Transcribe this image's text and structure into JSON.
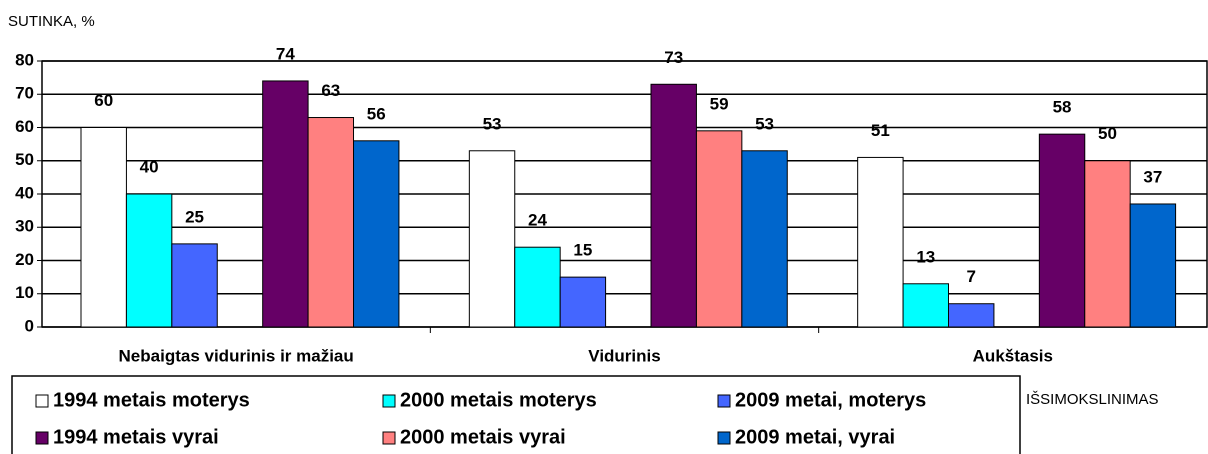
{
  "chart_data": {
    "type": "bar",
    "y_label": "SUTINKA, %",
    "x_label": "IŠSIMOKSLINIMAS",
    "categories": [
      "Nebaigtas vidurinis ir mažiau",
      "Vidurinis",
      "Aukštasis"
    ],
    "series": [
      {
        "name": "1994 metais moterys",
        "color": "#ffffff",
        "values": [
          60,
          53,
          51
        ]
      },
      {
        "name": "2000 metais moterys",
        "color": "#00ffff",
        "values": [
          40,
          24,
          13
        ]
      },
      {
        "name": "2009 metai, moterys",
        "color": "#4466ff",
        "values": [
          25,
          15,
          7
        ]
      },
      {
        "name": "1994 metais vyrai",
        "color": "#660066",
        "values": [
          74,
          73,
          58
        ]
      },
      {
        "name": "2000 metais vyrai",
        "color": "#ff8080",
        "values": [
          63,
          59,
          50
        ]
      },
      {
        "name": "2009 metai, vyrai",
        "color": "#0066cc",
        "values": [
          56,
          53,
          37
        ]
      }
    ],
    "ylim": [
      0,
      80
    ],
    "yticks": [
      0,
      10,
      20,
      30,
      40,
      50,
      60,
      70,
      80
    ],
    "grid": true,
    "legend": "bottom"
  }
}
